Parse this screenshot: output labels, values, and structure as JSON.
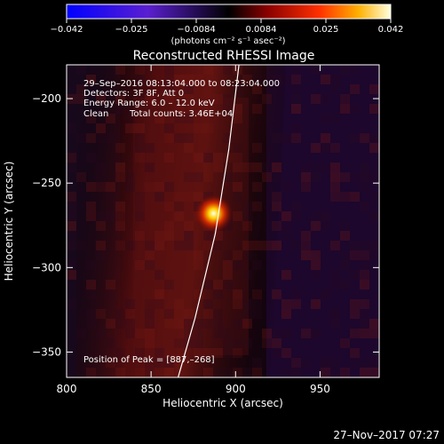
{
  "colorbar": {
    "ticks": [
      "−0.042",
      "−0.025",
      "−0.0084",
      "0.0084",
      "0.025",
      "0.042"
    ],
    "unit_label": "(photons cm⁻² s⁻¹ asec⁻²)",
    "range": [
      -0.042,
      0.042
    ]
  },
  "chart_data": {
    "type": "heatmap",
    "title": "Reconstructed RHESSI Image",
    "xlabel": "Heliocentric X (arcsec)",
    "ylabel": "Heliocentric Y (arcsec)",
    "xlim": [
      800,
      985
    ],
    "ylim": [
      -365,
      -180
    ],
    "x_ticks": [
      800,
      850,
      900,
      950
    ],
    "y_ticks": [
      -200,
      -250,
      -300,
      -350
    ],
    "peak": [
      887,
      -268
    ],
    "annotations": {
      "time": "29–Sep–2016 08:13:04.000 to 08:23:04.000",
      "detectors": "Detectors: 3F 8F, Att 0",
      "energy": "Energy Range: 6.0 – 12.0 keV",
      "method": "Clean",
      "counts": "Total counts: 3.46E+04",
      "peak_text": "Position of Peak = [887,–268]"
    },
    "limb_curve": [
      [
        902,
        -180
      ],
      [
        896,
        -230
      ],
      [
        888,
        -280
      ],
      [
        876,
        -330
      ],
      [
        866,
        -365
      ]
    ]
  },
  "footer_date": "27–Nov–2017 07:27"
}
